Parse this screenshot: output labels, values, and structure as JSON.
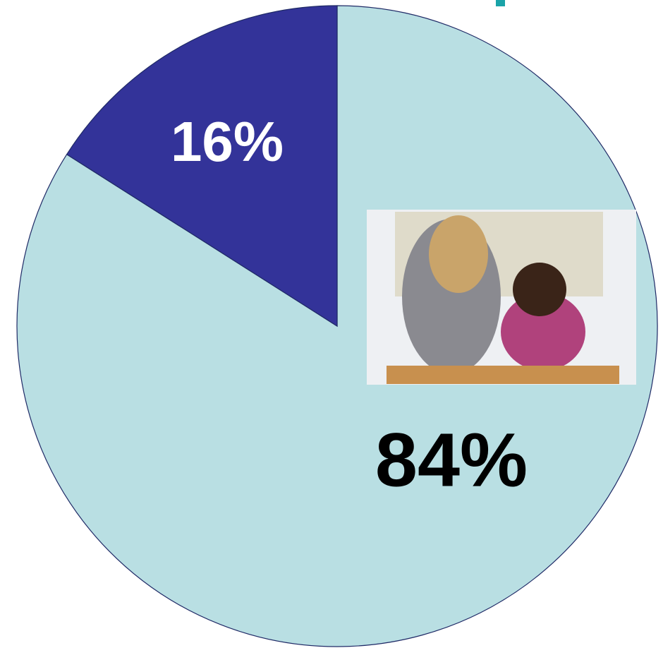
{
  "chart_data": {
    "type": "pie",
    "values": [
      84,
      16
    ],
    "value_labels": [
      "84%",
      "16%"
    ],
    "colors": [
      "#b9dfe3",
      "#333399"
    ]
  }
}
